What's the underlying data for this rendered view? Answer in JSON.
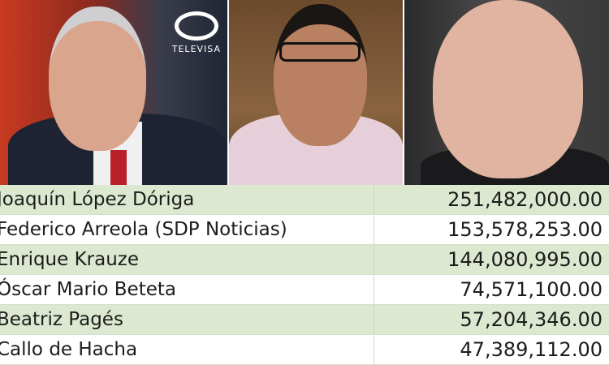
{
  "photos": [
    {
      "label": "TELEVISA",
      "logo_text": "TELEVISA"
    },
    {},
    {}
  ],
  "table": {
    "rows": [
      {
        "name": "Joaquín López Dóriga",
        "amount": "251,482,000.00"
      },
      {
        "name": "Federico Arreola (SDP Noticias)",
        "amount": "153,578,253.00"
      },
      {
        "name": "Enrique Krauze",
        "amount": "144,080,995.00"
      },
      {
        "name": "Óscar Mario Beteta",
        "amount": "74,571,100.00"
      },
      {
        "name": "Beatriz Pagés",
        "amount": "57,204,346.00"
      },
      {
        "name": "Callo de Hacha",
        "amount": "47,389,112.00"
      }
    ]
  },
  "colors": {
    "row_green": "#dce8cf",
    "row_white": "#ffffff"
  }
}
